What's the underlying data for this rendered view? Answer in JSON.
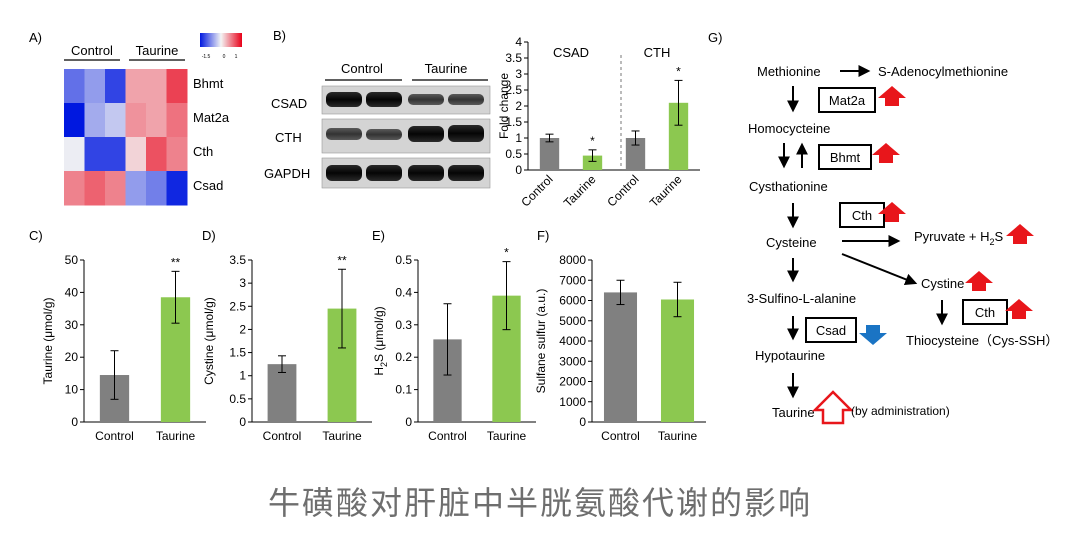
{
  "caption": "牛磺酸对肝脏中半胱氨酸代谢的影响",
  "colors": {
    "control": "#808080",
    "taurine": "#8cc850",
    "up_arrow": "#e8161b",
    "down_arrow": "#1a74c4"
  },
  "panels": {
    "A": {
      "label": "A)",
      "group_labels": [
        "Control",
        "Taurine"
      ],
      "scale_ticks": [
        "-1.5",
        "0",
        "1"
      ],
      "genes": [
        "Bhmt",
        "Mat2a",
        "Cth",
        "Csad"
      ],
      "heatmap_values": [
        [
          -0.9,
          -0.6,
          -1.2,
          0.5,
          0.5,
          1.1
        ],
        [
          -1.5,
          -0.5,
          -0.3,
          0.6,
          0.5,
          0.8
        ],
        [
          -0.05,
          -1.2,
          -1.2,
          0.2,
          1.0,
          0.7
        ],
        [
          0.7,
          0.9,
          0.7,
          -0.6,
          -0.8,
          -1.4
        ]
      ]
    },
    "B": {
      "label": "B)",
      "group_labels": [
        "Control",
        "Taurine"
      ],
      "bands": [
        "CSAD",
        "CTH",
        "GAPDH"
      ],
      "chart_ylabel": "Fold change",
      "chart_group_labels": [
        "CSAD",
        "CTH"
      ],
      "chart_ticks": [
        "0",
        "0.5",
        "1",
        "1.5",
        "2",
        "2.5",
        "3",
        "3.5",
        "4"
      ]
    },
    "C": {
      "label": "C)"
    },
    "D": {
      "label": "D)"
    },
    "E": {
      "label": "E)"
    },
    "F": {
      "label": "F)"
    },
    "G": {
      "label": "G)",
      "methionine": "Methionine",
      "sam": "S-Adenocylmethionine",
      "mat2a": "Mat2a",
      "homocysteine": "Homocycteine",
      "bhmt": "Bhmt",
      "cysthationine": "Cysthationine",
      "cth1": "Cth",
      "cysteine": "Cysteine",
      "pyruvate": "Pyruvate + H",
      "h2s_sub": "2",
      "h2s_s": "S",
      "sulfino": "3-Sulfino-L-alanine",
      "cystine": "Cystine",
      "cth2": "Cth",
      "csad": "Csad",
      "hypotaurine": "Hypotaurine",
      "thiocysteine": "Thiocysteine（Cys-SSH）",
      "taurine": "Taurine",
      "by_admin": "(by administration)"
    }
  },
  "chart_data": [
    {
      "type": "bar",
      "panel": "B",
      "title": "",
      "groups": [
        "CSAD",
        "CTH"
      ],
      "categories": [
        "Control",
        "Taurine",
        "Control",
        "Taurine"
      ],
      "values": [
        1.0,
        0.45,
        1.0,
        2.1
      ],
      "errors": [
        0.12,
        0.18,
        0.22,
        0.7
      ],
      "significance": [
        "",
        "*",
        "",
        "*"
      ],
      "ylabel": "Fold change",
      "xlabel": "",
      "ylim": [
        0,
        4
      ],
      "yticks": [
        "0",
        "0.5",
        "1",
        "1.5",
        "2",
        "2.5",
        "3",
        "3.5",
        "4"
      ]
    },
    {
      "type": "bar",
      "panel": "C",
      "title": "",
      "categories": [
        "Control",
        "Taurine"
      ],
      "values": [
        14.5,
        38.5
      ],
      "errors": [
        7.5,
        8.0
      ],
      "significance": [
        "",
        "**"
      ],
      "ylabel": "Taurine (μmol/g)",
      "xlabel": "",
      "ylim": [
        0,
        50
      ],
      "yticks": [
        "0",
        "10",
        "20",
        "30",
        "40",
        "50"
      ]
    },
    {
      "type": "bar",
      "panel": "D",
      "title": "",
      "categories": [
        "Control",
        "Taurine"
      ],
      "values": [
        1.25,
        2.45
      ],
      "errors": [
        0.18,
        0.85
      ],
      "significance": [
        "",
        "**"
      ],
      "ylabel": "Cystine (μmol/g)",
      "xlabel": "",
      "ylim": [
        0,
        3.5
      ],
      "yticks": [
        "0",
        "0.5",
        "1",
        "1.5",
        "2",
        "2.5",
        "3",
        "3.5"
      ]
    },
    {
      "type": "bar",
      "panel": "E",
      "title": "",
      "categories": [
        "Control",
        "Taurine"
      ],
      "values": [
        0.255,
        0.39
      ],
      "errors": [
        0.11,
        0.105
      ],
      "significance": [
        "",
        "*"
      ],
      "ylabel_parts": [
        "H",
        "2",
        "S (μmol/g)"
      ],
      "xlabel": "",
      "ylim": [
        0,
        0.5
      ],
      "yticks": [
        "0",
        "0.1",
        "0.2",
        "0.3",
        "0.4",
        "0.5"
      ]
    },
    {
      "type": "bar",
      "panel": "F",
      "title": "",
      "categories": [
        "Control",
        "Taurine"
      ],
      "values": [
        6400,
        6050
      ],
      "errors": [
        600,
        850
      ],
      "significance": [
        "",
        ""
      ],
      "ylabel": "Sulfane sulfur (a.u.)",
      "xlabel": "",
      "ylim": [
        0,
        8000
      ],
      "yticks": [
        "0",
        "1000",
        "2000",
        "3000",
        "4000",
        "5000",
        "6000",
        "7000",
        "8000"
      ]
    }
  ]
}
